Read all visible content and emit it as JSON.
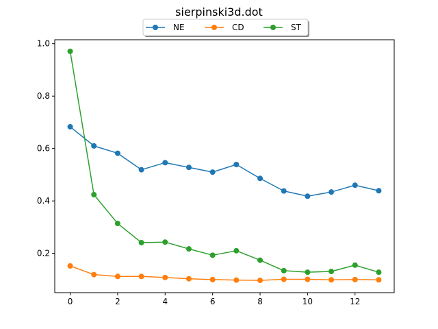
{
  "chart_data": {
    "type": "line",
    "title": "sierpinski3d.dot",
    "xlabel": "",
    "ylabel": "",
    "x": [
      0,
      1,
      2,
      3,
      4,
      5,
      6,
      7,
      8,
      9,
      10,
      11,
      12,
      13
    ],
    "xlim": [
      -0.65,
      13.65
    ],
    "ylim": [
      0.05,
      1.015
    ],
    "xticks": [
      0,
      2,
      4,
      6,
      8,
      10,
      12
    ],
    "yticks": [
      0.2,
      0.4,
      0.6,
      0.8,
      1.0
    ],
    "ytick_labels": [
      "0.2",
      "0.4",
      "0.6",
      "0.8",
      "1.0"
    ],
    "grid": false,
    "legend_position": "top-center",
    "series": [
      {
        "name": "NE",
        "color": "#1f77b4",
        "values": [
          0.683,
          0.61,
          0.582,
          0.519,
          0.546,
          0.528,
          0.51,
          0.539,
          0.486,
          0.438,
          0.418,
          0.434,
          0.46,
          0.439
        ]
      },
      {
        "name": "CD",
        "color": "#ff7f0e",
        "values": [
          0.152,
          0.119,
          0.112,
          0.112,
          0.108,
          0.103,
          0.1,
          0.098,
          0.097,
          0.101,
          0.101,
          0.099,
          0.1,
          0.099
        ]
      },
      {
        "name": "ST",
        "color": "#2ca02c",
        "values": [
          0.971,
          0.424,
          0.314,
          0.241,
          0.243,
          0.217,
          0.193,
          0.21,
          0.174,
          0.134,
          0.128,
          0.131,
          0.155,
          0.128
        ]
      }
    ]
  }
}
